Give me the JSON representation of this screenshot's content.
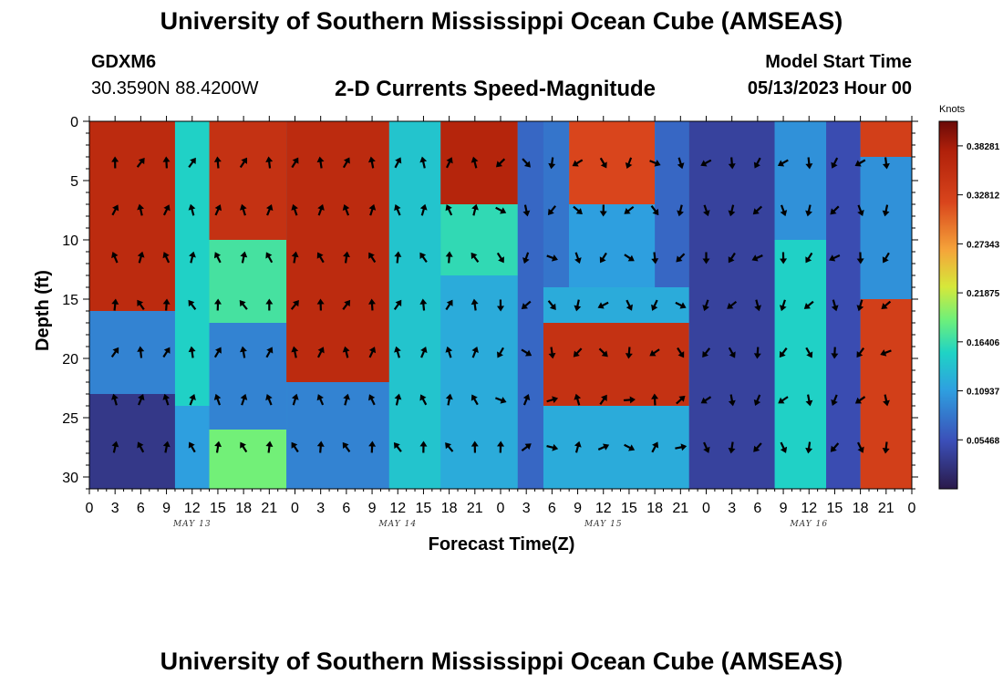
{
  "header": {
    "title": "University of Southern Mississippi Ocean Cube (AMSEAS)",
    "station": "GDXM6",
    "coords": "30.3590N  88.4200W",
    "subtitle": "2-D Currents Speed-Magnitude",
    "model_start_label": "Model Start Time",
    "model_start_value": "05/13/2023 Hour 00"
  },
  "footer": {
    "title": "University of Southern Mississippi Ocean Cube (AMSEAS)"
  },
  "chart_data": {
    "type": "heatmap",
    "title": "2-D Currents Speed-Magnitude",
    "xlabel": "Forecast Time(Z)",
    "ylabel": "Depth (ft)",
    "x_hours": [
      0,
      96
    ],
    "ylim": [
      0,
      31
    ],
    "y_ticks": [
      0,
      5,
      10,
      15,
      20,
      25,
      30
    ],
    "x_tick_labels": [
      "0",
      "3",
      "6",
      "9",
      "12",
      "15",
      "18",
      "21",
      "0",
      "3",
      "6",
      "9",
      "12",
      "15",
      "18",
      "21",
      "0",
      "3",
      "6",
      "9",
      "12",
      "15",
      "18",
      "21",
      "0",
      "3",
      "6",
      "9",
      "12",
      "15",
      "18",
      "21",
      "0"
    ],
    "date_labels": [
      {
        "hour": 12,
        "label": "MAY 13"
      },
      {
        "hour": 36,
        "label": "MAY 14"
      },
      {
        "hour": 60,
        "label": "MAY 15"
      },
      {
        "hour": 84,
        "label": "MAY 16"
      }
    ],
    "colorbar": {
      "units": "Knots",
      "min": 0.0,
      "max": 0.4102,
      "tick_values": [
        0.05468,
        0.10937,
        0.16406,
        0.21875,
        0.27343,
        0.32812,
        0.38281
      ],
      "tick_labels": [
        "0.05468",
        "0.10937",
        "0.16406",
        "0.21875",
        "0.27343",
        "0.32812",
        "0.38281"
      ]
    },
    "arrow_depths": [
      3.5,
      7.5,
      11.5,
      15.5,
      19.5,
      23.5,
      27.5
    ],
    "arrow_hours_step": 3,
    "speed_regions": [
      {
        "t0": 0,
        "t1": 10,
        "d0": 0,
        "d1": 16,
        "v": 0.36
      },
      {
        "t0": 0,
        "t1": 10,
        "d0": 16,
        "d1": 23,
        "v": 0.09
      },
      {
        "t0": 0,
        "t1": 10,
        "d0": 23,
        "d1": 31,
        "v": 0.03
      },
      {
        "t0": 10,
        "t1": 14,
        "d0": 0,
        "d1": 24,
        "v": 0.15
      },
      {
        "t0": 10,
        "t1": 14,
        "d0": 24,
        "d1": 31,
        "v": 0.11
      },
      {
        "t0": 14,
        "t1": 23,
        "d0": 0,
        "d1": 10,
        "v": 0.35
      },
      {
        "t0": 14,
        "t1": 23,
        "d0": 10,
        "d1": 17,
        "v": 0.17
      },
      {
        "t0": 14,
        "t1": 23,
        "d0": 17,
        "d1": 26,
        "v": 0.09
      },
      {
        "t0": 14,
        "t1": 23,
        "d0": 26,
        "d1": 31,
        "v": 0.19
      },
      {
        "t0": 23,
        "t1": 35,
        "d0": 0,
        "d1": 22,
        "v": 0.36
      },
      {
        "t0": 23,
        "t1": 35,
        "d0": 22,
        "d1": 31,
        "v": 0.09
      },
      {
        "t0": 35,
        "t1": 41,
        "d0": 0,
        "d1": 31,
        "v": 0.14
      },
      {
        "t0": 41,
        "t1": 50,
        "d0": 0,
        "d1": 7,
        "v": 0.37
      },
      {
        "t0": 41,
        "t1": 50,
        "d0": 7,
        "d1": 13,
        "v": 0.16
      },
      {
        "t0": 41,
        "t1": 50,
        "d0": 13,
        "d1": 31,
        "v": 0.12
      },
      {
        "t0": 50,
        "t1": 53,
        "d0": 0,
        "d1": 31,
        "v": 0.07
      },
      {
        "t0": 53,
        "t1": 56,
        "d0": 0,
        "d1": 14,
        "v": 0.08
      },
      {
        "t0": 56,
        "t1": 66,
        "d0": 0,
        "d1": 7,
        "v": 0.32
      },
      {
        "t0": 56,
        "t1": 66,
        "d0": 7,
        "d1": 14,
        "v": 0.11
      },
      {
        "t0": 53,
        "t1": 70,
        "d0": 14,
        "d1": 17,
        "v": 0.12
      },
      {
        "t0": 53,
        "t1": 70,
        "d0": 17,
        "d1": 24,
        "v": 0.35
      },
      {
        "t0": 53,
        "t1": 70,
        "d0": 24,
        "d1": 31,
        "v": 0.12
      },
      {
        "t0": 66,
        "t1": 70,
        "d0": 0,
        "d1": 14,
        "v": 0.07
      },
      {
        "t0": 70,
        "t1": 80,
        "d0": 0,
        "d1": 31,
        "v": 0.04
      },
      {
        "t0": 80,
        "t1": 86,
        "d0": 0,
        "d1": 10,
        "v": 0.1
      },
      {
        "t0": 80,
        "t1": 86,
        "d0": 10,
        "d1": 31,
        "v": 0.15
      },
      {
        "t0": 86,
        "t1": 90,
        "d0": 0,
        "d1": 31,
        "v": 0.05
      },
      {
        "t0": 90,
        "t1": 96,
        "d0": 0,
        "d1": 3,
        "v": 0.33
      },
      {
        "t0": 90,
        "t1": 96,
        "d0": 3,
        "d1": 15,
        "v": 0.1
      },
      {
        "t0": 90,
        "t1": 96,
        "d0": 15,
        "d1": 31,
        "v": 0.33
      }
    ]
  }
}
